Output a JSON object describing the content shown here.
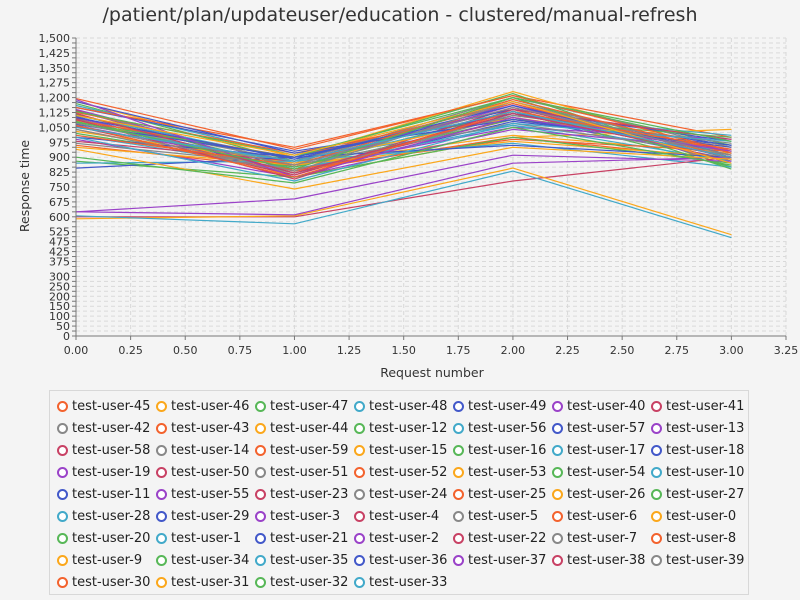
{
  "chart_data": {
    "type": "line",
    "title": "/patient/plan/updateuser/education - clustered/manual-refresh",
    "xlabel": "Request number",
    "ylabel": "Response time",
    "xlim": [
      0,
      3.25
    ],
    "ylim": [
      0,
      1500
    ],
    "x_ticks": [
      "0.00",
      "0.25",
      "0.50",
      "0.75",
      "1.00",
      "1.25",
      "1.50",
      "1.75",
      "2.00",
      "2.25",
      "2.50",
      "2.75",
      "3.00",
      "3.25"
    ],
    "y_ticks": [
      "0",
      "25",
      "50",
      "75",
      "100",
      "125",
      "150",
      "175",
      "200",
      "225",
      "250",
      "275",
      "300",
      "325",
      "350",
      "375",
      "400",
      "425",
      "450",
      "475",
      "500",
      "525",
      "550",
      "575",
      "600",
      "625",
      "650",
      "675",
      "700",
      "725",
      "750",
      "775",
      "800",
      "825",
      "850",
      "875",
      "900",
      "925",
      "950",
      "975",
      "1,000",
      "1,025",
      "1,050",
      "1,075",
      "1,100",
      "1,125",
      "1,150",
      "1,175",
      "1,200",
      "1,225",
      "1,250",
      "1,275",
      "1,300",
      "1,325",
      "1,350",
      "1,375",
      "1,400",
      "1,425",
      "1,450",
      "1,475",
      "1,500"
    ],
    "y_tick_labels_shown": [
      "0",
      "50",
      "100",
      "150",
      "200",
      "250",
      "300",
      "375",
      "425",
      "475",
      "525",
      "600",
      "675",
      "750",
      "825",
      "900",
      "975",
      "1,050",
      "1,125",
      "1,200",
      "1,275",
      "1,350",
      "1,425",
      "1,500"
    ],
    "grid": true,
    "legend_position": "bottom",
    "x": [
      0,
      1,
      2,
      3
    ],
    "series": [
      {
        "name": "test-user-45",
        "color": "#f3622d",
        "values": [
          1195,
          940,
          1210,
          1000
        ]
      },
      {
        "name": "test-user-46",
        "color": "#fba71b",
        "values": [
          1180,
          900,
          1230,
          920
        ]
      },
      {
        "name": "test-user-47",
        "color": "#57b757",
        "values": [
          1170,
          880,
          1200,
          960
        ]
      },
      {
        "name": "test-user-48",
        "color": "#41a9c9",
        "values": [
          1160,
          910,
          1120,
          900
        ]
      },
      {
        "name": "test-user-49",
        "color": "#4258c9",
        "values": [
          1150,
          930,
          1100,
          890
        ]
      },
      {
        "name": "test-user-40",
        "color": "#9a42c8",
        "values": [
          1140,
          860,
          1170,
          870
        ]
      },
      {
        "name": "test-user-41",
        "color": "#c84164",
        "values": [
          1135,
          830,
          1090,
          940
        ]
      },
      {
        "name": "test-user-42",
        "color": "#888888",
        "values": [
          1130,
          870,
          1190,
          910
        ]
      },
      {
        "name": "test-user-43",
        "color": "#f3622d",
        "values": [
          1125,
          920,
          1140,
          880
        ]
      },
      {
        "name": "test-user-44",
        "color": "#fba71b",
        "values": [
          1120,
          800,
          1000,
          1040
        ]
      },
      {
        "name": "test-user-12",
        "color": "#57b757",
        "values": [
          1115,
          850,
          1130,
          850
        ]
      },
      {
        "name": "test-user-56",
        "color": "#41a9c9",
        "values": [
          1110,
          890,
          1060,
          930
        ]
      },
      {
        "name": "test-user-57",
        "color": "#4258c9",
        "values": [
          1105,
          820,
          1080,
          960
        ]
      },
      {
        "name": "test-user-13",
        "color": "#9a42c8",
        "values": [
          1100,
          840,
          1050,
          990
        ]
      },
      {
        "name": "test-user-58",
        "color": "#c84164",
        "values": [
          1095,
          810,
          1150,
          880
        ]
      },
      {
        "name": "test-user-14",
        "color": "#888888",
        "values": [
          1090,
          880,
          1200,
          950
        ]
      },
      {
        "name": "test-user-59",
        "color": "#f3622d",
        "values": [
          1085,
          900,
          1170,
          900
        ]
      },
      {
        "name": "test-user-15",
        "color": "#fba71b",
        "values": [
          1080,
          860,
          1010,
          920
        ]
      },
      {
        "name": "test-user-16",
        "color": "#57b757",
        "values": [
          1075,
          900,
          1220,
          850
        ]
      },
      {
        "name": "test-user-17",
        "color": "#41a9c9",
        "values": [
          1070,
          870,
          1110,
          1010
        ]
      },
      {
        "name": "test-user-18",
        "color": "#4258c9",
        "values": [
          1065,
          900,
          1140,
          980
        ]
      },
      {
        "name": "test-user-19",
        "color": "#9a42c8",
        "values": [
          1060,
          850,
          1160,
          870
        ]
      },
      {
        "name": "test-user-50",
        "color": "#c84164",
        "values": [
          1055,
          810,
          1120,
          900
        ]
      },
      {
        "name": "test-user-51",
        "color": "#888888",
        "values": [
          1050,
          880,
          1180,
          920
        ]
      },
      {
        "name": "test-user-52",
        "color": "#f3622d",
        "values": [
          1040,
          830,
          1000,
          890
        ]
      },
      {
        "name": "test-user-53",
        "color": "#fba71b",
        "values": [
          1030,
          870,
          1100,
          950
        ]
      },
      {
        "name": "test-user-54",
        "color": "#57b757",
        "values": [
          1020,
          850,
          1090,
          1000
        ]
      },
      {
        "name": "test-user-10",
        "color": "#41a9c9",
        "values": [
          1010,
          840,
          1060,
          880
        ]
      },
      {
        "name": "test-user-11",
        "color": "#4258c9",
        "values": [
          1000,
          900,
          1120,
          960
        ]
      },
      {
        "name": "test-user-55",
        "color": "#9a42c8",
        "values": [
          990,
          800,
          1040,
          940
        ]
      },
      {
        "name": "test-user-23",
        "color": "#c84164",
        "values": [
          980,
          880,
          1130,
          900
        ]
      },
      {
        "name": "test-user-24",
        "color": "#888888",
        "values": [
          970,
          860,
          1070,
          910
        ]
      },
      {
        "name": "test-user-25",
        "color": "#f3622d",
        "values": [
          960,
          840,
          990,
          930
        ]
      },
      {
        "name": "test-user-26",
        "color": "#fba71b",
        "values": [
          950,
          860,
          980,
          900
        ]
      },
      {
        "name": "test-user-27",
        "color": "#57b757",
        "values": [
          880,
          800,
          1000,
          870
        ]
      },
      {
        "name": "test-user-28",
        "color": "#41a9c9",
        "values": [
          870,
          880,
          970,
          850
        ]
      },
      {
        "name": "test-user-29",
        "color": "#4258c9",
        "values": [
          845,
          900,
          960,
          900
        ]
      },
      {
        "name": "test-user-3",
        "color": "#9a42c8",
        "values": [
          625,
          690,
          910,
          880
        ]
      },
      {
        "name": "test-user-4",
        "color": "#c84164",
        "values": [
          600,
          600,
          780,
          900
        ]
      },
      {
        "name": "test-user-5",
        "color": "#888888",
        "values": [
          1040,
          820,
          1110,
          970
        ]
      },
      {
        "name": "test-user-6",
        "color": "#f3622d",
        "values": [
          1150,
          950,
          1210,
          930
        ]
      },
      {
        "name": "test-user-0",
        "color": "#fba71b",
        "values": [
          590,
          605,
          845,
          510
        ]
      },
      {
        "name": "test-user-20",
        "color": "#57b757",
        "values": [
          1130,
          910,
          1200,
          840
        ]
      },
      {
        "name": "test-user-1",
        "color": "#41a9c9",
        "values": [
          605,
          565,
          830,
          495
        ]
      },
      {
        "name": "test-user-21",
        "color": "#4258c9",
        "values": [
          1100,
          890,
          1160,
          910
        ]
      },
      {
        "name": "test-user-2",
        "color": "#9a42c8",
        "values": [
          625,
          610,
          870,
          900
        ]
      },
      {
        "name": "test-user-22",
        "color": "#c84164",
        "values": [
          1090,
          790,
          1140,
          990
        ]
      },
      {
        "name": "test-user-7",
        "color": "#888888",
        "values": [
          1060,
          830,
          1180,
          890
        ]
      },
      {
        "name": "test-user-8",
        "color": "#f3622d",
        "values": [
          1010,
          860,
          1190,
          920
        ]
      },
      {
        "name": "test-user-9",
        "color": "#fba71b",
        "values": [
          940,
          740,
          950,
          890
        ]
      },
      {
        "name": "test-user-34",
        "color": "#57b757",
        "values": [
          900,
          770,
          1050,
          860
        ]
      },
      {
        "name": "test-user-35",
        "color": "#41a9c9",
        "values": [
          1000,
          780,
          1070,
          980
        ]
      },
      {
        "name": "test-user-36",
        "color": "#4258c9",
        "values": [
          1180,
          920,
          1090,
          950
        ]
      },
      {
        "name": "test-user-37",
        "color": "#9a42c8",
        "values": [
          1190,
          800,
          1100,
          930
        ]
      },
      {
        "name": "test-user-38",
        "color": "#c84164",
        "values": [
          1120,
          820,
          1120,
          900
        ]
      },
      {
        "name": "test-user-39",
        "color": "#888888",
        "values": [
          1070,
          860,
          1150,
          910
        ]
      },
      {
        "name": "test-user-30",
        "color": "#f3622d",
        "values": [
          1060,
          800,
          1130,
          940
        ]
      },
      {
        "name": "test-user-31",
        "color": "#fba71b",
        "values": [
          1110,
          910,
          1180,
          870
        ]
      },
      {
        "name": "test-user-32",
        "color": "#57b757",
        "values": [
          1080,
          840,
          1200,
          980
        ]
      },
      {
        "name": "test-user-33",
        "color": "#41a9c9",
        "values": [
          1050,
          880,
          1130,
          900
        ]
      }
    ]
  }
}
